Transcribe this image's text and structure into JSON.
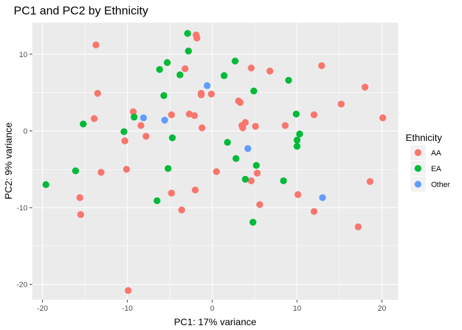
{
  "chart_data": {
    "type": "scatter",
    "title": "PC1 and PC2 by Ethnicity",
    "xlabel": "PC1: 17% variance",
    "ylabel": "PC2: 9% variance",
    "xlim": [
      -21.2,
      21.9
    ],
    "ylim": [
      -22.0,
      14.1
    ],
    "x_ticks": [
      -20,
      -10,
      0,
      10,
      20
    ],
    "y_ticks": [
      -20,
      -10,
      0,
      10
    ],
    "legend": {
      "title": "Ethnicity",
      "position": "right",
      "entries": [
        {
          "name": "AA",
          "color": "#F8766D"
        },
        {
          "name": "EA",
          "color": "#00BA38"
        },
        {
          "name": "Other",
          "color": "#619CFF"
        }
      ]
    },
    "series": [
      {
        "name": "AA",
        "color": "#F8766D",
        "points": [
          [
            -13.7,
            11.2
          ],
          [
            -13.5,
            4.9
          ],
          [
            -13.9,
            1.6
          ],
          [
            -13.1,
            -5.4
          ],
          [
            -15.6,
            -8.7
          ],
          [
            -15.5,
            -10.9
          ],
          [
            -10.3,
            -1.3
          ],
          [
            -10.1,
            -5.0
          ],
          [
            -9.9,
            -20.8
          ],
          [
            -9.3,
            2.5
          ],
          [
            -8.4,
            0.7
          ],
          [
            -7.8,
            -0.7
          ],
          [
            -4.8,
            2.1
          ],
          [
            -4.8,
            -8.1
          ],
          [
            -3.6,
            -10.3
          ],
          [
            -3.2,
            8.1
          ],
          [
            -2.7,
            2.2
          ],
          [
            -2.1,
            2.0
          ],
          [
            -2.0,
            -7.7
          ],
          [
            -1.9,
            12.5
          ],
          [
            -1.8,
            12.1
          ],
          [
            -1.3,
            4.9
          ],
          [
            -1.3,
            4.7
          ],
          [
            -1.2,
            0.4
          ],
          [
            -0.1,
            4.8
          ],
          [
            0.5,
            -5.3
          ],
          [
            3.1,
            3.9
          ],
          [
            3.3,
            3.7
          ],
          [
            3.5,
            0.7
          ],
          [
            3.6,
            0.4
          ],
          [
            3.9,
            1.1
          ],
          [
            4.6,
            -6.5
          ],
          [
            4.6,
            8.2
          ],
          [
            5.1,
            0.6
          ],
          [
            5.3,
            -5.5
          ],
          [
            5.6,
            -9.6
          ],
          [
            6.8,
            7.8
          ],
          [
            8.6,
            0.7
          ],
          [
            10.1,
            -8.3
          ],
          [
            12.0,
            -10.5
          ],
          [
            12.0,
            2.1
          ],
          [
            12.9,
            8.5
          ],
          [
            15.2,
            3.5
          ],
          [
            17.2,
            -12.5
          ],
          [
            18.0,
            5.7
          ],
          [
            18.6,
            -6.6
          ],
          [
            20.1,
            1.7
          ]
        ]
      },
      {
        "name": "EA",
        "color": "#00BA38",
        "points": [
          [
            -19.6,
            -7.0
          ],
          [
            -16.1,
            -5.2
          ],
          [
            -15.2,
            0.9
          ],
          [
            -10.4,
            -0.1
          ],
          [
            -9.2,
            1.8
          ],
          [
            -6.5,
            -9.1
          ],
          [
            -6.2,
            8.0
          ],
          [
            -5.7,
            4.6
          ],
          [
            -5.3,
            8.9
          ],
          [
            -5.2,
            -4.9
          ],
          [
            -4.7,
            -0.9
          ],
          [
            -3.8,
            7.3
          ],
          [
            -2.9,
            12.7
          ],
          [
            -2.8,
            10.4
          ],
          [
            1.4,
            7.2
          ],
          [
            1.8,
            -1.5
          ],
          [
            2.7,
            9.1
          ],
          [
            2.8,
            -3.6
          ],
          [
            3.9,
            -6.3
          ],
          [
            4.8,
            -11.9
          ],
          [
            4.9,
            5.2
          ],
          [
            5.2,
            -4.5
          ],
          [
            8.4,
            -6.5
          ],
          [
            9.0,
            6.6
          ],
          [
            9.9,
            2.2
          ],
          [
            10.0,
            -1.2
          ],
          [
            10.0,
            -2.0
          ],
          [
            10.3,
            -0.4
          ]
        ]
      },
      {
        "name": "Other",
        "color": "#619CFF",
        "points": [
          [
            -8.1,
            1.7
          ],
          [
            -5.6,
            1.4
          ],
          [
            -0.6,
            5.9
          ],
          [
            4.2,
            -2.3
          ],
          [
            13.0,
            -8.7
          ]
        ]
      }
    ]
  }
}
